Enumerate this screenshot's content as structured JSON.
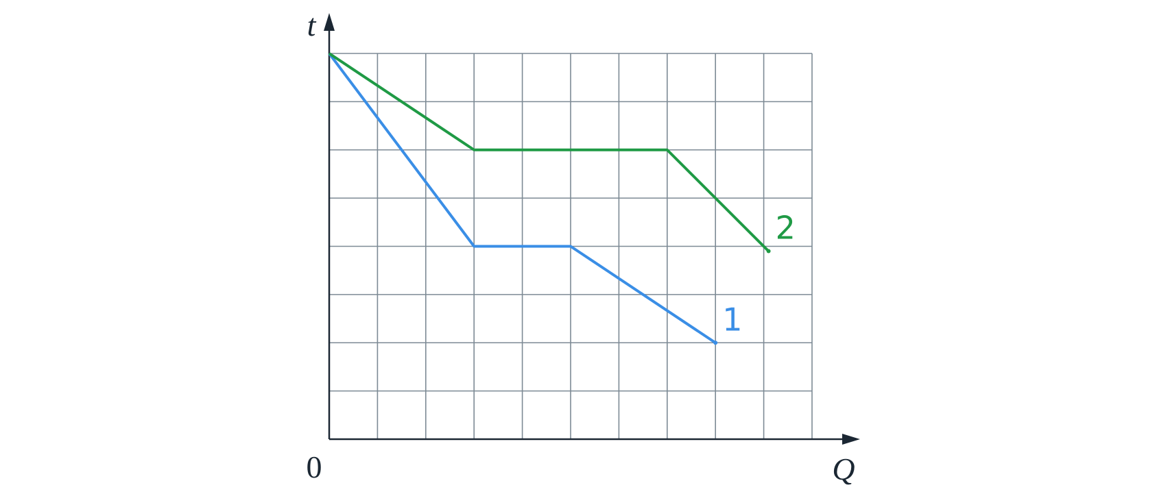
{
  "chart_data": {
    "type": "line",
    "x_label": "Q",
    "y_label": "t",
    "origin_label": "0",
    "xlim": [
      0,
      10
    ],
    "ylim": [
      0,
      8
    ],
    "xticks": [
      0,
      1,
      2,
      3,
      4,
      5,
      6,
      7,
      8,
      9,
      10
    ],
    "yticks": [
      0,
      1,
      2,
      3,
      4,
      5,
      6,
      7,
      8
    ],
    "grid": true,
    "series": [
      {
        "name": "1",
        "color": "#3a8ee6",
        "x": [
          0,
          3,
          5,
          8
        ],
        "values": [
          8,
          4,
          4,
          2
        ]
      },
      {
        "name": "2",
        "color": "#1f9a45",
        "x": [
          0,
          3,
          7,
          9.1
        ],
        "values": [
          8,
          6,
          6,
          3.9
        ]
      }
    ]
  }
}
